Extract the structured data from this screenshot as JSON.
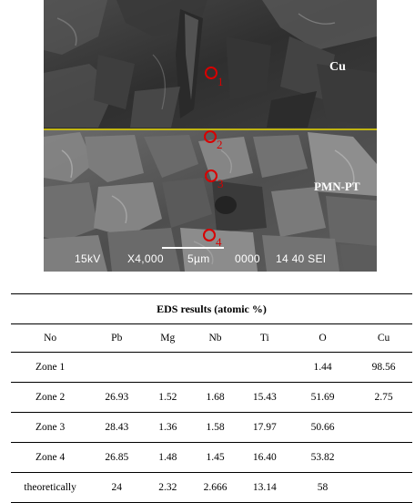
{
  "image": {
    "region_labels": {
      "top": "Cu",
      "bottom": "PMN-PT"
    },
    "zones": [
      "1",
      "2",
      "3",
      "4"
    ],
    "info_bar": {
      "kv": "15kV",
      "magnification": "X4,000",
      "scale": "5µm",
      "code": "0000",
      "time": "14 40 SEI"
    },
    "colors": {
      "interface_line": "#e8d800",
      "zone_marker": "#d80000"
    }
  },
  "table": {
    "title": "EDS results (atomic %)",
    "headers": [
      "No",
      "Pb",
      "Mg",
      "Nb",
      "Ti",
      "O",
      "Cu"
    ],
    "rows": [
      [
        "Zone 1",
        "",
        "",
        "",
        "",
        "1.44",
        "98.56"
      ],
      [
        "Zone 2",
        "26.93",
        "1.52",
        "1.68",
        "15.43",
        "51.69",
        "2.75"
      ],
      [
        "Zone 3",
        "28.43",
        "1.36",
        "1.58",
        "17.97",
        "50.66",
        ""
      ],
      [
        "Zone 4",
        "26.85",
        "1.48",
        "1.45",
        "16.40",
        "53.82",
        ""
      ],
      [
        "theoretically",
        "24",
        "2.32",
        "2.666",
        "13.14",
        "58",
        ""
      ]
    ]
  }
}
